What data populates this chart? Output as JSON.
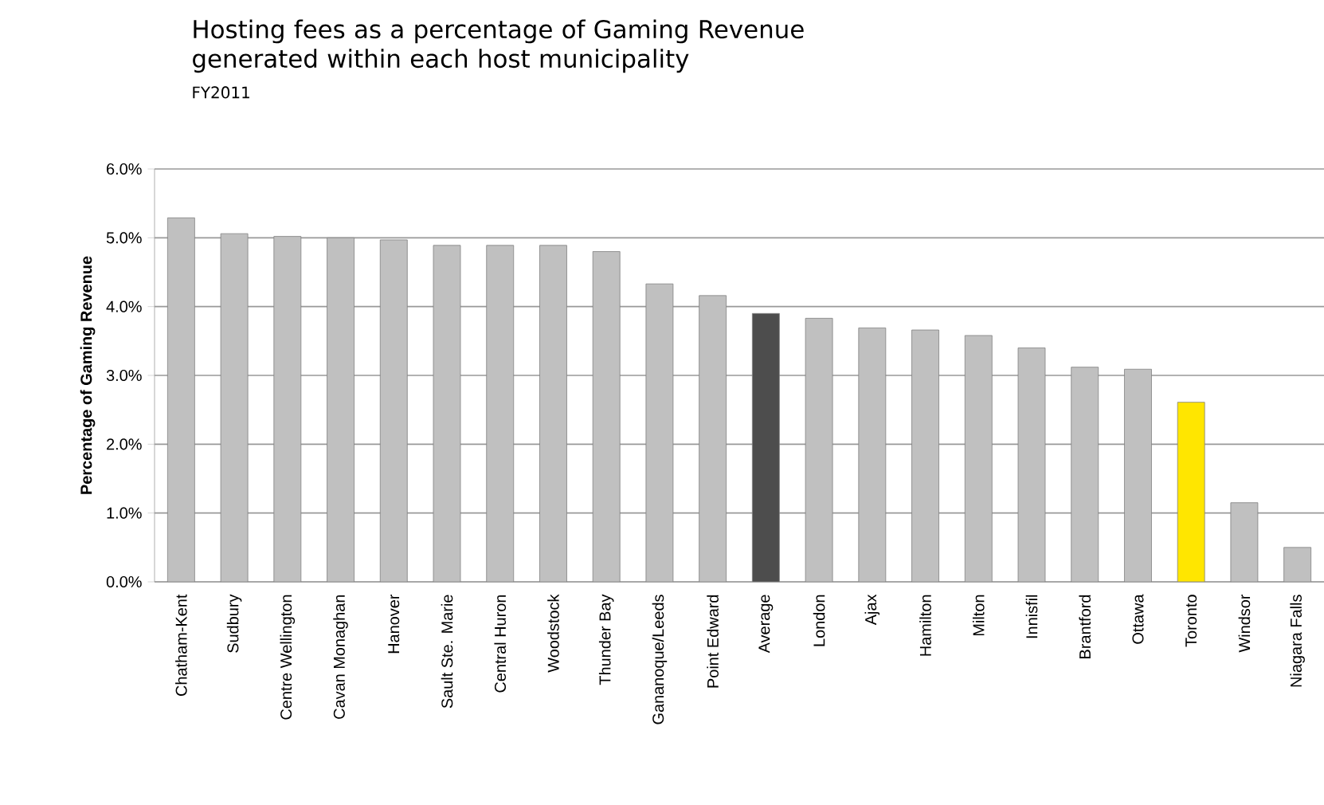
{
  "chart_data": {
    "type": "bar",
    "title": "Hosting fees as a percentage of Gaming Revenue generated within each host municipality",
    "subtitle": "FY2011",
    "ylabel": "Percentage of Gaming Revenue",
    "categories": [
      "Chatham-Kent",
      "Sudbury",
      "Centre Wellington",
      "Cavan Monaghan",
      "Hanover",
      "Sault Ste. Marie",
      "Central Huron",
      "Woodstock",
      "Thunder Bay",
      "Gananoque/Leeds",
      "Point Edward",
      "Average",
      "London",
      "Ajax",
      "Hamilton",
      "Milton",
      "Innisfil",
      "Brantford",
      "Ottawa",
      "Toronto",
      "Windsor",
      "Niagara Falls"
    ],
    "values": [
      5.29,
      5.06,
      5.02,
      5.0,
      4.97,
      4.89,
      4.89,
      4.89,
      4.8,
      4.33,
      4.16,
      3.9,
      3.83,
      3.69,
      3.66,
      3.58,
      3.4,
      3.12,
      3.09,
      2.61,
      1.15,
      0.5
    ],
    "colors": [
      "#c0c0c0",
      "#c0c0c0",
      "#c0c0c0",
      "#c0c0c0",
      "#c0c0c0",
      "#c0c0c0",
      "#c0c0c0",
      "#c0c0c0",
      "#c0c0c0",
      "#c0c0c0",
      "#c0c0c0",
      "#4d4d4d",
      "#c0c0c0",
      "#c0c0c0",
      "#c0c0c0",
      "#c0c0c0",
      "#c0c0c0",
      "#c0c0c0",
      "#c0c0c0",
      "#ffe600",
      "#c0c0c0",
      "#c0c0c0"
    ],
    "ylim": [
      0,
      6
    ],
    "yticks": [
      {
        "value": 0,
        "label": "0.0%"
      },
      {
        "value": 1,
        "label": "1.0%"
      },
      {
        "value": 2,
        "label": "2.0%"
      },
      {
        "value": 3,
        "label": "3.0%"
      },
      {
        "value": 4,
        "label": "4.0%"
      },
      {
        "value": 5,
        "label": "5.0%"
      },
      {
        "value": 6,
        "label": "6.0%"
      }
    ],
    "grid": "y"
  }
}
